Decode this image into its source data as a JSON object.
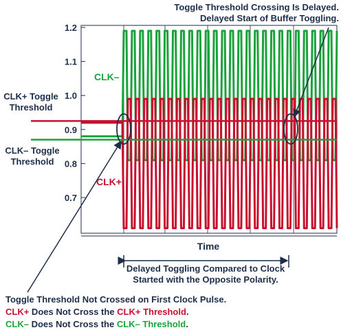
{
  "chart_data": {
    "type": "line",
    "xlabel": "Time",
    "ylabel": "",
    "ylim": [
      0.6,
      1.2
    ],
    "yticks": [
      "1.2",
      "1.1",
      "1.0",
      "0.9",
      "0.8",
      "0.7"
    ],
    "grid": true,
    "cycles": 26,
    "series": [
      {
        "name": "CLK–",
        "color": "#1aa33b",
        "high": 1.19,
        "low": 0.81,
        "idle": 0.88
      },
      {
        "name": "CLK+",
        "color": "#c8102e",
        "high": 0.99,
        "low": 0.61,
        "idle": 0.92
      }
    ],
    "thresholds": [
      {
        "name": "CLK+ Toggle Threshold",
        "value": 0.925,
        "color": "#c8102e"
      },
      {
        "name": "CLK– Toggle Threshold",
        "value": 0.87,
        "color": "#1aa33b"
      }
    ]
  },
  "labels": {
    "clk_minus": "CLK–",
    "clk_plus": "CLK+",
    "clk_plus_threshold": [
      "CLK+ Toggle",
      "Threshold"
    ],
    "clk_minus_threshold": [
      "CLK– Toggle",
      "Threshold"
    ],
    "top_note": [
      "Toggle Threshold Crossing Is Delayed.",
      "Delayed Start of Buffer Toggling."
    ],
    "delay_note": [
      "Delayed Toggling Compared to Clock",
      "Started with the Opposite Polarity."
    ],
    "bottom_note": {
      "line1": "Toggle Threshold Not Crossed on First Clock Pulse.",
      "line2_a": "CLK+",
      "line2_b": " Does Not Cross the ",
      "line2_c": "CLK+ Threshold",
      "line2_d": ".",
      "line3_a": "CLK–",
      "line3_b": " Does Not Cross the ",
      "line3_c": "CLK– Threshold",
      "line3_d": "."
    }
  },
  "colors": {
    "axis": "#1c2e4a",
    "grid": "#1c2e4a",
    "red": "#c8102e",
    "green": "#1aa33b"
  }
}
